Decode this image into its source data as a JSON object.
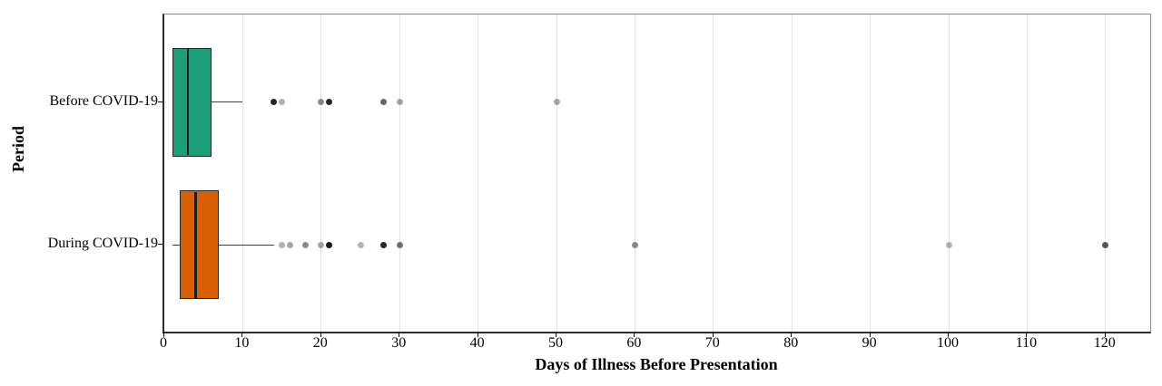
{
  "chart_data": {
    "type": "boxplot",
    "orientation": "horizontal",
    "title": "",
    "xlabel": "Days of Illness Before Presentation",
    "ylabel": "Period",
    "x_ticks": [
      0,
      10,
      20,
      30,
      40,
      50,
      60,
      70,
      80,
      90,
      100,
      110,
      120
    ],
    "xlim": [
      0,
      125.7
    ],
    "grid": "vertical-major-only",
    "legend": "none",
    "dot_color": "#000000",
    "gridline_color": "#e4e4e4",
    "categories": [
      "Before COVID-19",
      "During COVID-19"
    ],
    "series": [
      {
        "name": "Before COVID-19",
        "fill": "#1b9e77",
        "min": 1,
        "q1": 1,
        "median": 3,
        "q3": 6,
        "max_whisker": 10,
        "outliers": [
          {
            "value": 14,
            "opacity": 0.85
          },
          {
            "value": 15,
            "opacity": 0.3
          },
          {
            "value": 20,
            "opacity": 0.45
          },
          {
            "value": 21,
            "opacity": 0.85
          },
          {
            "value": 28,
            "opacity": 0.6
          },
          {
            "value": 30,
            "opacity": 0.35
          },
          {
            "value": 50,
            "opacity": 0.35
          }
        ]
      },
      {
        "name": "During COVID-19",
        "fill": "#d95f02",
        "min": 1,
        "q1": 2,
        "median": 4,
        "q3": 7,
        "max_whisker": 14,
        "outliers": [
          {
            "value": 15,
            "opacity": 0.3
          },
          {
            "value": 16,
            "opacity": 0.35
          },
          {
            "value": 18,
            "opacity": 0.45
          },
          {
            "value": 20,
            "opacity": 0.35
          },
          {
            "value": 21,
            "opacity": 0.9
          },
          {
            "value": 25,
            "opacity": 0.3
          },
          {
            "value": 28,
            "opacity": 0.85
          },
          {
            "value": 30,
            "opacity": 0.55
          },
          {
            "value": 60,
            "opacity": 0.45
          },
          {
            "value": 100,
            "opacity": 0.3
          },
          {
            "value": 120,
            "opacity": 0.65
          }
        ]
      }
    ]
  }
}
